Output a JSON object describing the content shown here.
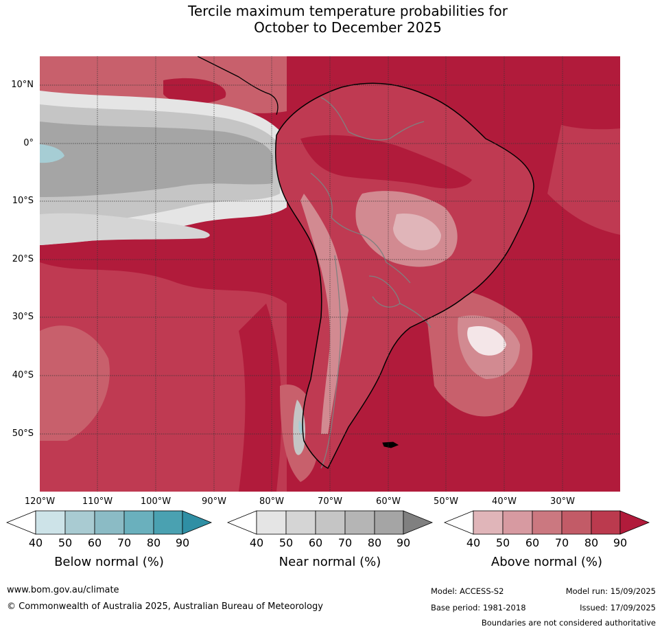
{
  "title": {
    "line1": "Tercile maximum temperature probabilities for",
    "line2": "October to December 2025"
  },
  "map": {
    "lat_labels": [
      "10°N",
      "0°",
      "10°S",
      "20°S",
      "30°S",
      "40°S",
      "50°S"
    ],
    "lon_labels": [
      "120°W",
      "110°W",
      "100°W",
      "90°W",
      "80°W",
      "70°W",
      "60°W",
      "50°W",
      "40°W",
      "30°W"
    ],
    "colors": {
      "above_90": "#b11b3b",
      "above_80": "#bf3a52",
      "above_70": "#c8606c",
      "above_60": "#d28a91",
      "above_50": "#e0b5b9",
      "near_90": "#a5a5a5",
      "near_80": "#b5b5b5",
      "near_70": "#c5c5c5",
      "near_60": "#d5d5d5",
      "near_50": "#e5e5e5",
      "below_60": "#a6cdd4",
      "land_outline": "#000000",
      "borders": "#808080"
    }
  },
  "colorbars": [
    {
      "title": "Below normal (%)",
      "ticks": [
        "40",
        "50",
        "60",
        "70",
        "80",
        "90"
      ],
      "colors": [
        "#ffffff",
        "#cde3e8",
        "#a9cbd2",
        "#8bbbc5",
        "#6ab0bd",
        "#4aa1b1",
        "#2f8fa4"
      ]
    },
    {
      "title": "Near normal (%)",
      "ticks": [
        "40",
        "50",
        "60",
        "70",
        "80",
        "90"
      ],
      "colors": [
        "#ffffff",
        "#e5e5e5",
        "#d5d5d5",
        "#c5c5c5",
        "#b5b5b5",
        "#a5a5a5",
        "#808080"
      ]
    },
    {
      "title": "Above normal (%)",
      "ticks": [
        "40",
        "50",
        "60",
        "70",
        "80",
        "90"
      ],
      "colors": [
        "#ffffff",
        "#e0b5b9",
        "#d79aa1",
        "#cb7880",
        "#c25b67",
        "#bb3a4e",
        "#b11b3b"
      ]
    }
  ],
  "footer": {
    "url": "www.bom.gov.au/climate",
    "copyright": "© Commonwealth of Australia 2025, Australian Bureau of Meteorology",
    "model": "Model: ACCESS-S2",
    "model_run": "Model run: 15/09/2025",
    "base_period": "Base period: 1981-2018",
    "issued": "Issued: 17/09/2025",
    "disclaimer": "Boundaries are not considered authoritative"
  }
}
